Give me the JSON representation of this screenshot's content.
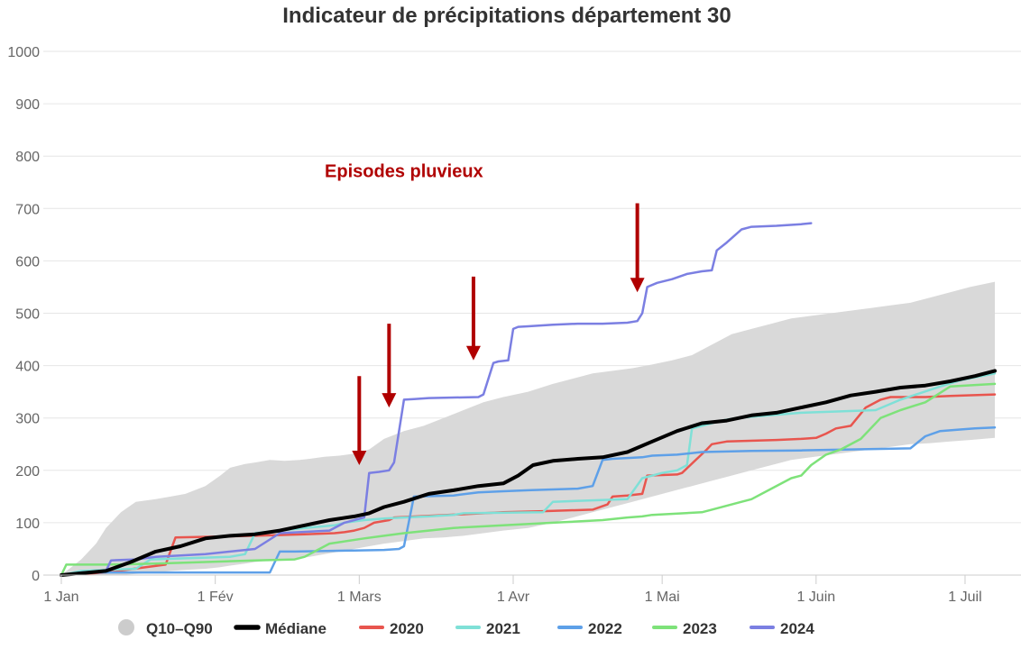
{
  "chart_data": {
    "type": "line",
    "title": "Indicateur de précipitations département 30",
    "xlabel": "",
    "ylabel": "",
    "ylim": [
      0,
      1000
    ],
    "yticks": [
      0,
      100,
      200,
      300,
      400,
      500,
      600,
      700,
      800,
      900,
      1000
    ],
    "xlim": [
      1,
      189
    ],
    "xticks": [
      {
        "day": 1,
        "label": "1 Jan"
      },
      {
        "day": 32,
        "label": "1 Fév"
      },
      {
        "day": 61,
        "label": "1 Mars"
      },
      {
        "day": 92,
        "label": "1 Avr"
      },
      {
        "day": 122,
        "label": "1 Mai"
      },
      {
        "day": 153,
        "label": "1 Juin"
      },
      {
        "day": 183,
        "label": "1 Juil"
      }
    ],
    "grid": true,
    "legend_position": "bottom",
    "band": {
      "name": "Q10–Q90",
      "color": "#d9d9d9",
      "x": [
        1,
        5,
        8,
        10,
        13,
        16,
        20,
        23,
        26,
        30,
        33,
        35,
        38,
        40,
        43,
        46,
        49,
        51,
        54,
        57,
        60,
        63,
        66,
        70,
        74,
        78,
        82,
        86,
        90,
        95,
        100,
        104,
        108,
        112,
        116,
        120,
        124,
        128,
        132,
        136,
        140,
        144,
        148,
        152,
        156,
        160,
        164,
        168,
        172,
        176,
        180,
        184,
        189
      ],
      "upper": [
        0,
        30,
        60,
        90,
        120,
        140,
        145,
        150,
        155,
        170,
        190,
        205,
        212,
        215,
        220,
        218,
        220,
        222,
        226,
        228,
        232,
        240,
        260,
        275,
        285,
        300,
        315,
        330,
        340,
        350,
        365,
        375,
        385,
        390,
        395,
        402,
        410,
        420,
        440,
        460,
        470,
        480,
        490,
        495,
        500,
        505,
        510,
        515,
        520,
        530,
        540,
        550,
        560
      ],
      "lower": [
        0,
        0,
        0,
        0,
        0,
        2,
        5,
        8,
        10,
        12,
        15,
        18,
        22,
        25,
        28,
        30,
        32,
        35,
        40,
        45,
        50,
        55,
        60,
        65,
        70,
        72,
        75,
        80,
        85,
        90,
        100,
        110,
        120,
        130,
        140,
        150,
        160,
        170,
        180,
        190,
        200,
        210,
        220,
        225,
        230,
        235,
        240,
        245,
        250,
        252,
        255,
        258,
        262
      ]
    },
    "series": [
      {
        "name": "Médiane",
        "color": "#000000",
        "width": 4,
        "x": [
          1,
          10,
          15,
          20,
          25,
          30,
          35,
          40,
          45,
          50,
          55,
          60,
          63,
          66,
          70,
          75,
          80,
          85,
          90,
          93,
          96,
          100,
          105,
          110,
          115,
          120,
          125,
          130,
          135,
          140,
          145,
          150,
          155,
          160,
          165,
          170,
          175,
          180,
          185,
          189
        ],
        "y": [
          0,
          8,
          25,
          45,
          55,
          70,
          75,
          78,
          85,
          95,
          105,
          112,
          118,
          130,
          140,
          155,
          162,
          170,
          175,
          190,
          210,
          218,
          222,
          225,
          235,
          255,
          275,
          290,
          295,
          305,
          310,
          320,
          330,
          343,
          350,
          358,
          362,
          370,
          380,
          390
        ]
      },
      {
        "name": "2020",
        "color": "#e8554e",
        "width": 2.5,
        "x": [
          1,
          10,
          18,
          22,
          24,
          40,
          50,
          56,
          58,
          60,
          62,
          64,
          67,
          68,
          90,
          98,
          108,
          111,
          112,
          115,
          118,
          119,
          125,
          126,
          131,
          132,
          135,
          145,
          150,
          153,
          155,
          157,
          160,
          163,
          166,
          168,
          175,
          180,
          189
        ],
        "y": [
          0,
          5,
          15,
          20,
          72,
          75,
          78,
          80,
          82,
          85,
          90,
          100,
          105,
          110,
          120,
          122,
          125,
          135,
          150,
          152,
          155,
          190,
          192,
          195,
          240,
          250,
          255,
          258,
          260,
          262,
          270,
          280,
          285,
          320,
          335,
          340,
          340,
          342,
          345
        ]
      },
      {
        "name": "2021",
        "color": "#7fe0d7",
        "width": 2.5,
        "x": [
          1,
          5,
          10,
          16,
          19,
          35,
          38,
          40,
          45,
          50,
          56,
          58,
          62,
          66,
          70,
          75,
          80,
          82,
          98,
          100,
          115,
          118,
          122,
          125,
          127,
          128,
          132,
          134,
          137,
          150,
          165,
          170,
          178,
          182,
          189
        ],
        "y": [
          0,
          8,
          10,
          12,
          30,
          35,
          40,
          80,
          85,
          90,
          95,
          100,
          105,
          108,
          110,
          112,
          115,
          118,
          120,
          140,
          145,
          185,
          195,
          200,
          210,
          280,
          290,
          295,
          300,
          310,
          315,
          335,
          360,
          372,
          385
        ]
      },
      {
        "name": "2022",
        "color": "#5ea0e8",
        "width": 2.5,
        "x": [
          1,
          5,
          10,
          43,
          45,
          48,
          60,
          66,
          69,
          70,
          72,
          80,
          85,
          90,
          95,
          105,
          108,
          110,
          112,
          118,
          120,
          125,
          130,
          140,
          150,
          160,
          172,
          175,
          178,
          182,
          185,
          189
        ],
        "y": [
          0,
          5,
          5,
          5,
          45,
          45,
          47,
          48,
          50,
          55,
          150,
          152,
          158,
          160,
          162,
          165,
          170,
          220,
          222,
          225,
          228,
          230,
          235,
          237,
          238,
          240,
          242,
          265,
          275,
          278,
          280,
          282
        ]
      },
      {
        "name": "2023",
        "color": "#7ee27a",
        "width": 2.5,
        "x": [
          1,
          2,
          10,
          20,
          30,
          40,
          48,
          50,
          55,
          62,
          66,
          70,
          75,
          80,
          90,
          100,
          110,
          115,
          118,
          120,
          130,
          132,
          138,
          140,
          144,
          148,
          150,
          152,
          155,
          158,
          162,
          166,
          170,
          175,
          180,
          189
        ],
        "y": [
          0,
          20,
          20,
          22,
          25,
          28,
          30,
          35,
          60,
          70,
          75,
          80,
          85,
          90,
          95,
          100,
          105,
          110,
          112,
          115,
          120,
          125,
          140,
          145,
          165,
          185,
          190,
          210,
          230,
          240,
          260,
          300,
          315,
          330,
          360,
          365
        ]
      },
      {
        "name": "2024",
        "color": "#7b7fe2",
        "width": 2.5,
        "x": [
          1,
          5,
          10,
          11,
          16,
          20,
          30,
          40,
          45,
          55,
          58,
          60,
          62,
          63,
          65,
          67,
          68,
          70,
          72,
          75,
          85,
          86,
          88,
          89,
          91,
          92,
          93,
          95,
          100,
          105,
          110,
          115,
          117,
          118,
          119,
          121,
          124,
          127,
          130,
          132,
          133,
          135,
          138,
          140,
          145,
          150,
          152
        ],
        "y": [
          0,
          5,
          8,
          28,
          30,
          35,
          40,
          50,
          80,
          85,
          100,
          105,
          110,
          195,
          197,
          200,
          215,
          335,
          336,
          338,
          340,
          345,
          405,
          408,
          410,
          470,
          474,
          475,
          478,
          480,
          480,
          482,
          485,
          500,
          550,
          558,
          565,
          575,
          580,
          582,
          620,
          635,
          660,
          665,
          667,
          670,
          672
        ]
      }
    ],
    "annotations": [
      {
        "type": "text",
        "text": "Episodes pluvieux",
        "x": 70,
        "y": 760,
        "color": "#b00000"
      },
      {
        "type": "arrow",
        "x": 61,
        "y_from": 380,
        "y_to": 210,
        "color": "#b00000"
      },
      {
        "type": "arrow",
        "x": 67,
        "y_from": 480,
        "y_to": 320,
        "color": "#b00000"
      },
      {
        "type": "arrow",
        "x": 84,
        "y_from": 570,
        "y_to": 410,
        "color": "#b00000"
      },
      {
        "type": "arrow",
        "x": 117,
        "y_from": 710,
        "y_to": 540,
        "color": "#b00000"
      }
    ]
  }
}
